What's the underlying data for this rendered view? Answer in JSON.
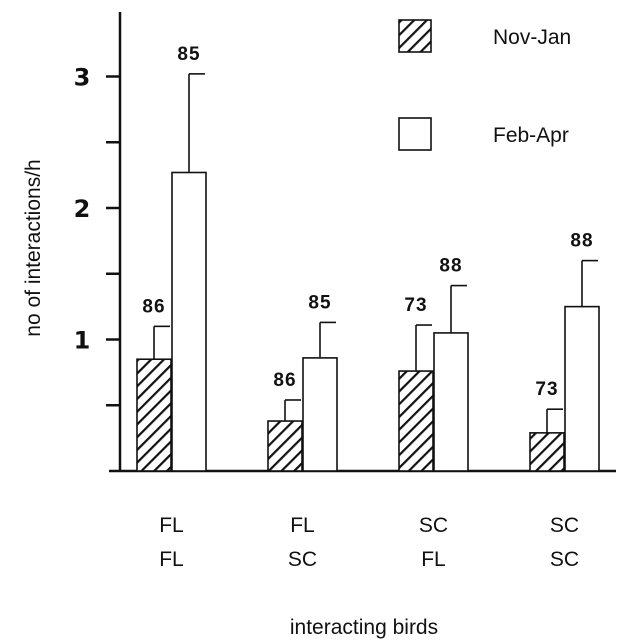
{
  "chart_data": {
    "type": "bar",
    "xlabel": "interacting birds",
    "ylabel": "no of interactions/h",
    "ylim": [
      0,
      3.5
    ],
    "yticks": [
      0.5,
      1,
      1.5,
      2,
      2.5,
      3
    ],
    "ytick_labels": [
      {
        "value": 1,
        "label": "1"
      },
      {
        "value": 2,
        "label": "2"
      },
      {
        "value": 3,
        "label": "3"
      }
    ],
    "categories": [
      {
        "line1": "FL",
        "line2": "FL"
      },
      {
        "line1": "FL",
        "line2": "SC"
      },
      {
        "line1": "SC",
        "line2": "FL"
      },
      {
        "line1": "SC",
        "line2": "SC"
      }
    ],
    "series": [
      {
        "name": "Nov-Jan",
        "pattern": "hatched",
        "values": [
          0.85,
          0.38,
          0.76,
          0.29
        ],
        "errors": [
          0.25,
          0.16,
          0.35,
          0.18
        ],
        "n_labels": [
          "86",
          "86",
          "73",
          "73"
        ]
      },
      {
        "name": "Feb-Apr",
        "pattern": "open",
        "values": [
          2.27,
          0.86,
          1.05,
          1.25
        ],
        "errors": [
          0.75,
          0.27,
          0.36,
          0.35
        ],
        "n_labels": [
          "85",
          "85",
          "88",
          "88"
        ]
      }
    ],
    "legend": "top-right",
    "grid": false,
    "colors": {
      "ink": "#111111",
      "fill_open": "#ffffff"
    }
  }
}
